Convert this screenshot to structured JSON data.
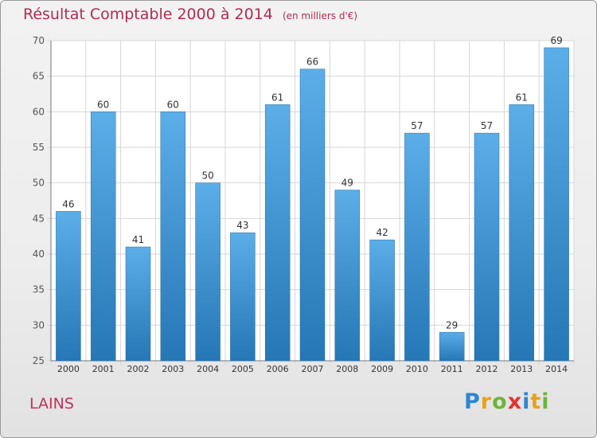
{
  "title": "Résultat Comptable 2000 à 2014",
  "subtitle": "(en milliers d'€)",
  "location": "LAINS",
  "logo": {
    "letters": [
      "P",
      "r",
      "o",
      "x",
      "i",
      "t",
      "i"
    ],
    "colors": [
      "#2e86d0",
      "#e8a21c",
      "#6fb43a",
      "#e3342f",
      "#2e86d0",
      "#e8a21c",
      "#6fb43a"
    ]
  },
  "colors": {
    "bar_top": "#5baee8",
    "bar_bottom": "#2577b5",
    "title": "#b22c52"
  },
  "chart_data": {
    "type": "bar",
    "title": "Résultat Comptable 2000 à 2014",
    "subtitle": "(en milliers d'€)",
    "xlabel": "",
    "ylabel": "",
    "categories": [
      "2000",
      "2001",
      "2002",
      "2003",
      "2004",
      "2005",
      "2006",
      "2007",
      "2008",
      "2009",
      "2010",
      "2011",
      "2012",
      "2013",
      "2014"
    ],
    "values": [
      46,
      60,
      41,
      60,
      50,
      43,
      61,
      66,
      49,
      42,
      57,
      29,
      57,
      61,
      69
    ],
    "ylim": [
      25,
      70
    ],
    "yticks": [
      25,
      30,
      35,
      40,
      45,
      50,
      55,
      60,
      65,
      70
    ],
    "grid": true,
    "legend": "none"
  }
}
